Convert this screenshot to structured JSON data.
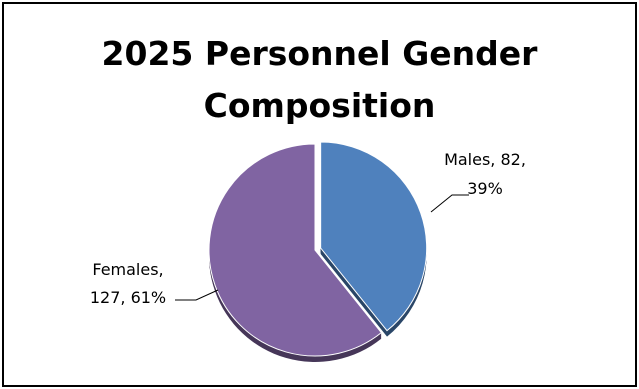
{
  "chart_data": {
    "type": "pie",
    "title": "2025 Personnel Gender Composition",
    "title_lines": [
      "2025 Personnel Gender",
      "Composition"
    ],
    "slices": [
      {
        "name": "Males",
        "value": 82,
        "percent": 39,
        "color": "#4f81bd",
        "exploded": true,
        "label_lines": [
          "Males, 82,",
          "39%"
        ]
      },
      {
        "name": "Females",
        "value": 127,
        "percent": 61,
        "color": "#8064a2",
        "exploded": false,
        "label_lines": [
          "Females,",
          "127, 61%"
        ]
      }
    ],
    "legend": "none",
    "style": "3d"
  }
}
